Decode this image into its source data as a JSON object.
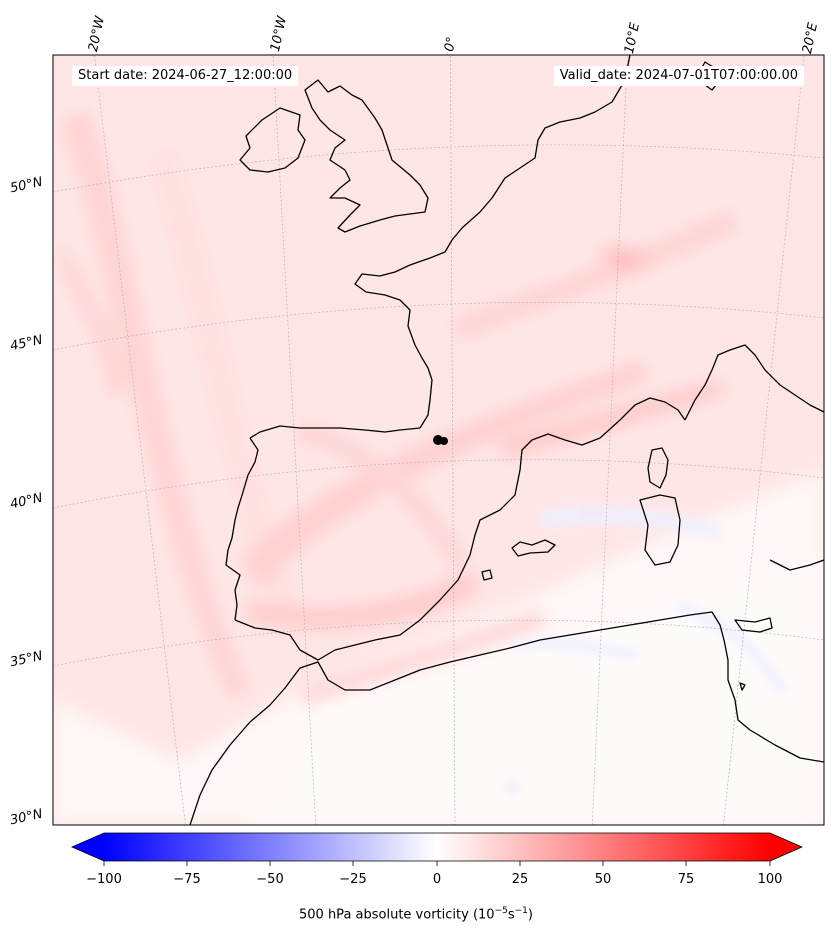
{
  "header": {
    "start_date": "Start date: 2024-06-27_12:00:00",
    "valid_date": "Valid_date: 2024-07-01T07:00:00.00"
  },
  "axes": {
    "lon_labels": [
      "20°W",
      "10°W",
      "0°",
      "10°E",
      "20°E"
    ],
    "lat_labels": [
      "50°N",
      "45°N",
      "40°N",
      "35°N",
      "30°N"
    ]
  },
  "colorbar": {
    "ticks": [
      "−100",
      "−75",
      "−50",
      "−25",
      "0",
      "25",
      "50",
      "75",
      "100"
    ],
    "label_main": "500 hPa absolute vorticity (10",
    "label_exp1": "−5",
    "label_mid": "s",
    "label_exp2": "−1",
    "label_end": ")",
    "min_color": "#0000ff",
    "mid_color": "#ffffff",
    "max_color": "#ff0000"
  }
}
